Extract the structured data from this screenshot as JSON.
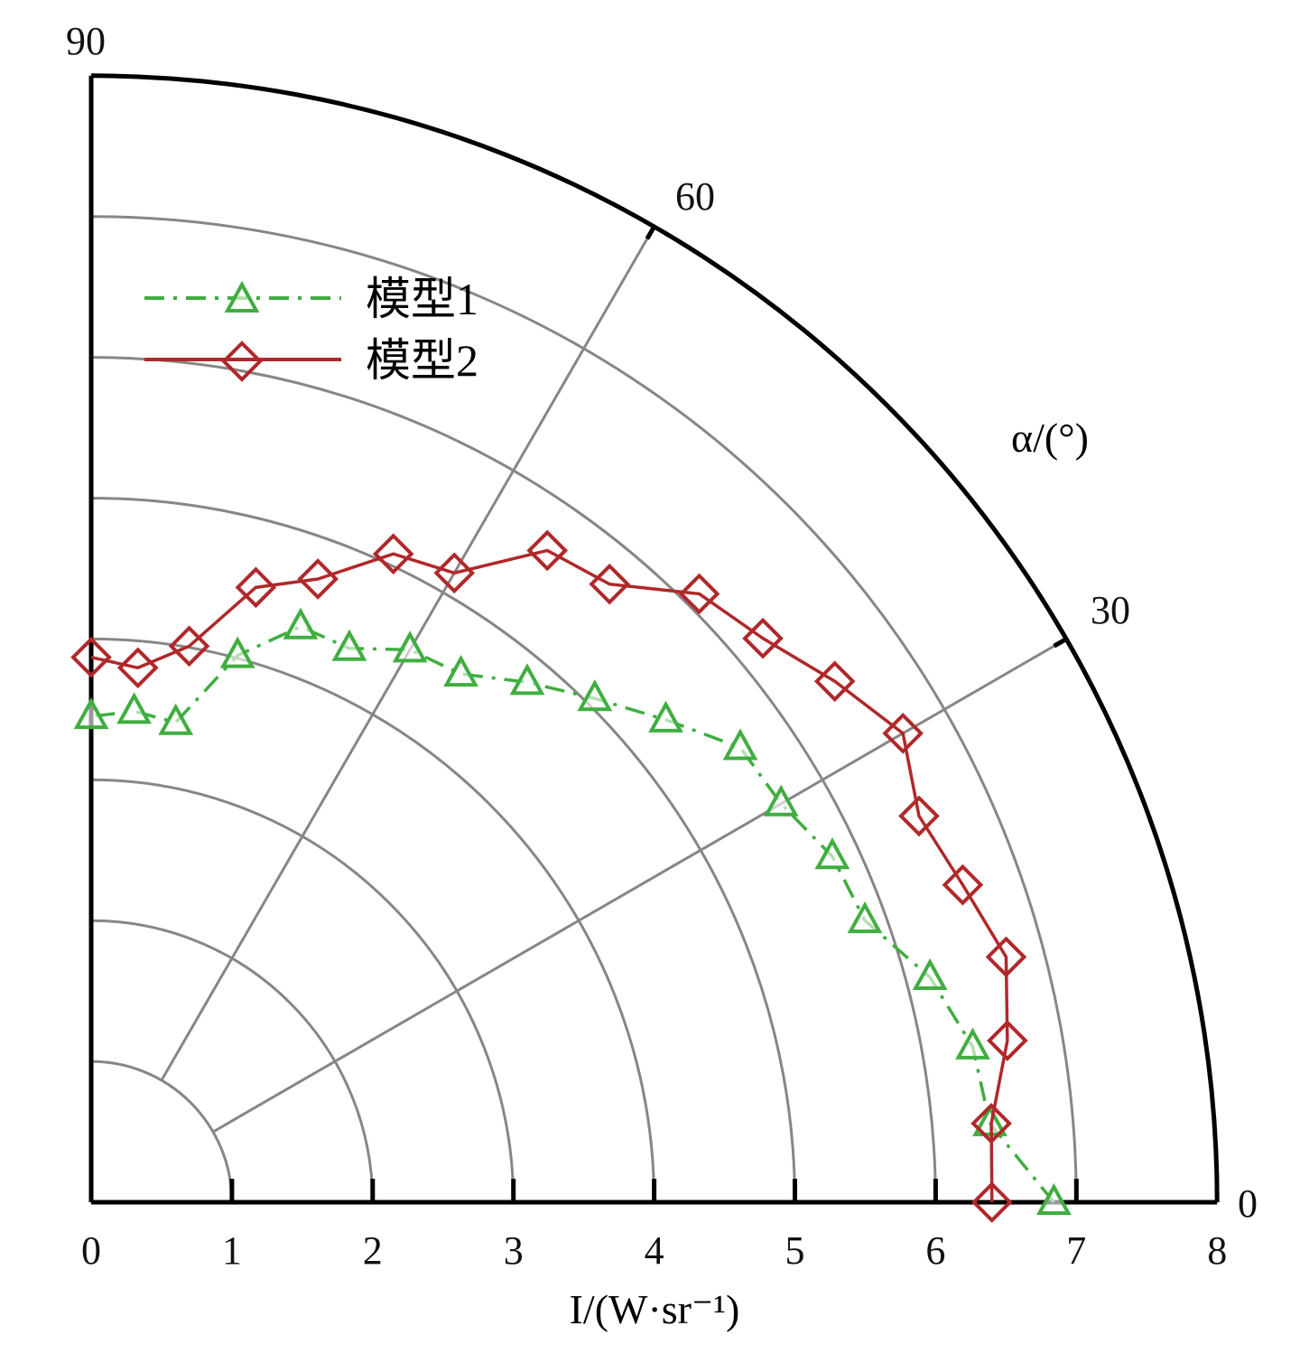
{
  "chart_data": {
    "type": "polar-line",
    "title": "",
    "radial_axis": {
      "label": "I/(W·sr⁻¹)",
      "range": [
        0,
        8
      ],
      "ticks": [
        "0",
        "1",
        "2",
        "3",
        "4",
        "5",
        "6",
        "7",
        "8"
      ]
    },
    "angular_axis": {
      "label": "α/(°)",
      "range": [
        0,
        90
      ],
      "ticks": [
        "0",
        "30",
        "60",
        "90"
      ]
    },
    "grid": true,
    "legend_position": "top-left",
    "colors": {
      "model1": "#3fae3f",
      "model2": "#b0282a"
    },
    "angles": [
      0,
      5,
      10,
      15,
      20,
      25,
      30,
      35,
      40,
      45,
      50,
      55,
      60,
      65,
      70,
      75,
      80,
      85,
      90
    ],
    "series": [
      {
        "name": "模型1",
        "marker": "triangle",
        "line": "dash-dot",
        "values": [
          6.84,
          6.41,
          6.36,
          6.17,
          5.85,
          5.81,
          5.66,
          5.63,
          5.33,
          5.06,
          4.82,
          4.58,
          4.53,
          4.34,
          4.35,
          4.02,
          3.46,
          3.5,
          3.45
        ]
      },
      {
        "name": "模型2",
        "marker": "diamond",
        "line": "solid",
        "values": [
          6.4,
          6.42,
          6.61,
          6.73,
          6.59,
          6.49,
          6.66,
          6.45,
          6.23,
          6.11,
          5.73,
          5.65,
          5.16,
          5.08,
          4.71,
          4.52,
          4.01,
          3.81,
          3.87
        ]
      }
    ]
  }
}
